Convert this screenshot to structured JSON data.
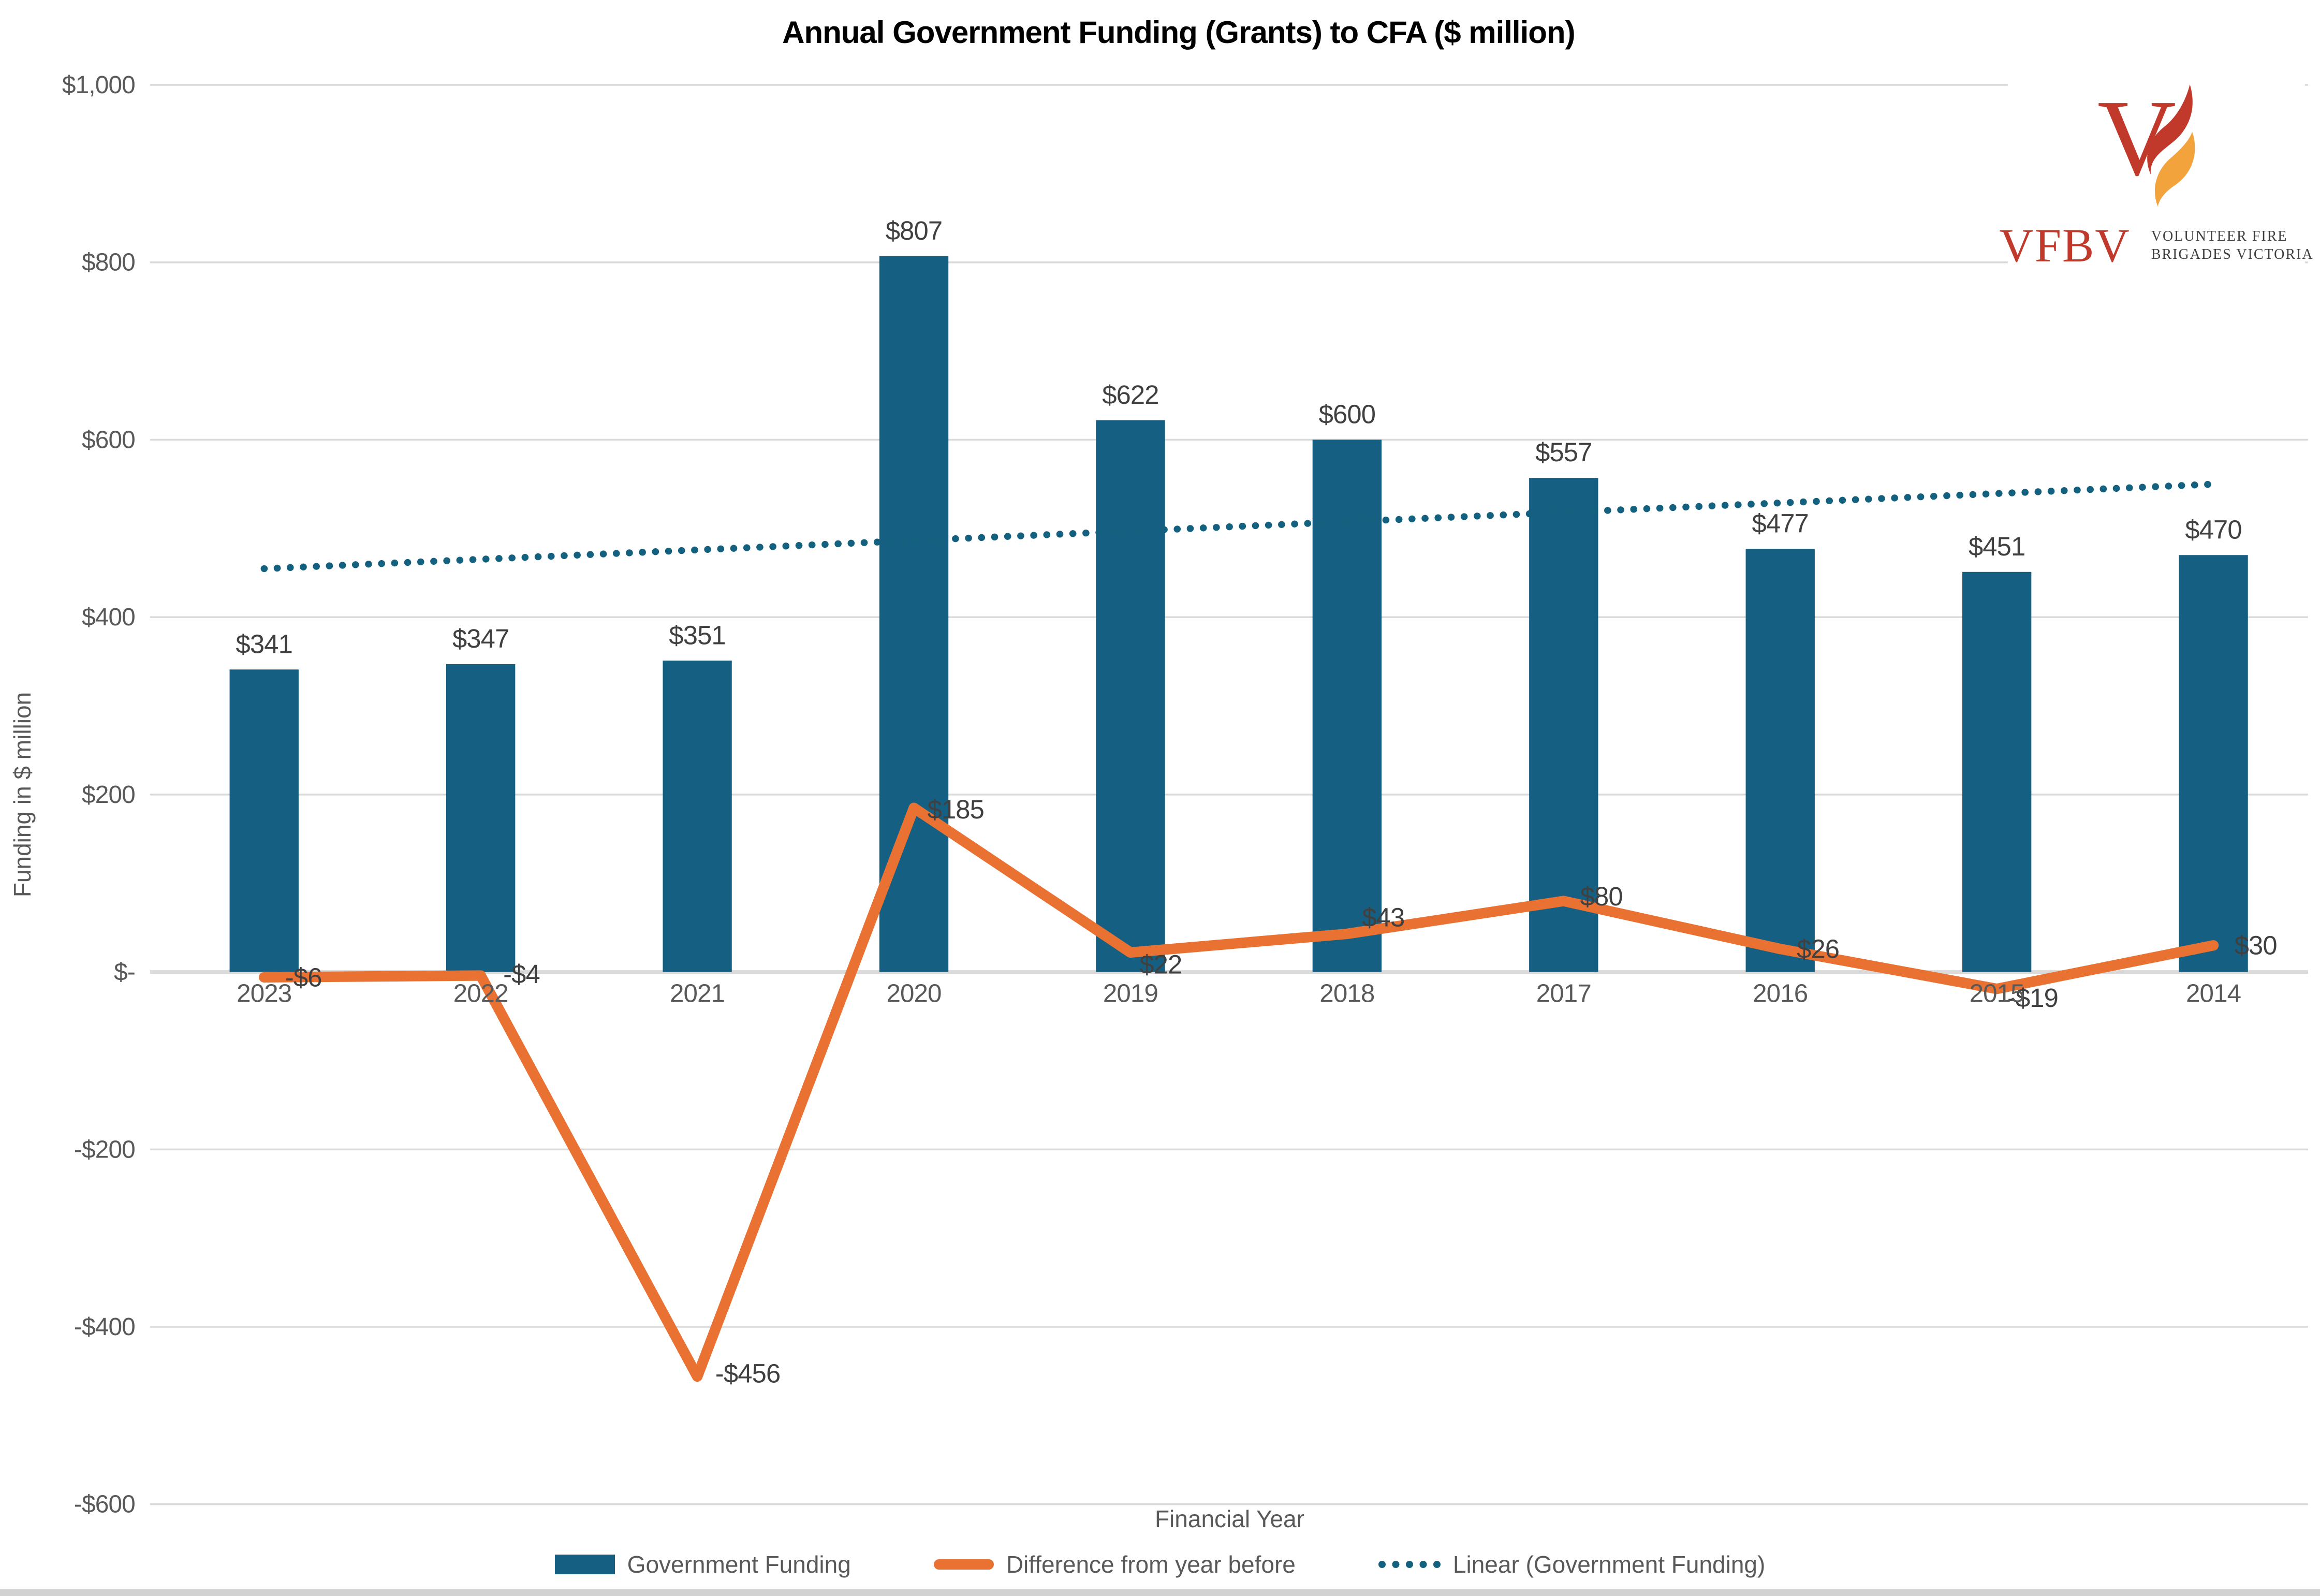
{
  "title": "Annual Government Funding (Grants) to CFA ($ million)",
  "logo": {
    "acronym": "VFBV",
    "org_line1": "VOLUNTEER FIRE",
    "org_line2": "BRIGADES VICTORIA"
  },
  "chart_data": {
    "type": "bar",
    "title": "Annual Government Funding (Grants) to CFA ($ million)",
    "categories": [
      "2023",
      "2022",
      "2021",
      "2020",
      "2019",
      "2018",
      "2017",
      "2016",
      "2015",
      "2014"
    ],
    "series": [
      {
        "name": "Government Funding",
        "type": "bar",
        "color": "#156082",
        "values": [
          341,
          347,
          351,
          807,
          622,
          600,
          557,
          477,
          451,
          470
        ],
        "labels": [
          "$341",
          "$347",
          "$351",
          "$807",
          "$622",
          "$600",
          "$557",
          "$477",
          "$451",
          "$470"
        ]
      },
      {
        "name": "Difference from year before",
        "type": "line",
        "color": "#E97132",
        "values": [
          -6,
          -4,
          -456,
          185,
          22,
          43,
          80,
          26,
          -19,
          30
        ],
        "labels": [
          "-$6",
          "-$4",
          "-$456",
          "$185",
          "$22",
          "$43",
          "$80",
          "$26",
          "-$19",
          "$30"
        ]
      },
      {
        "name": "Linear (Government Funding)",
        "type": "linear-trend",
        "of_series": "Government Funding",
        "color": "#14607F",
        "style": "dotted"
      }
    ],
    "xlabel": "Financial Year",
    "ylabel": "Funding in $ million",
    "ylim": [
      -600,
      1000
    ],
    "y_ticks": [
      {
        "label": "$1,000",
        "value": 1000
      },
      {
        "label": "$800",
        "value": 800
      },
      {
        "label": "$600",
        "value": 600
      },
      {
        "label": "$400",
        "value": 400
      },
      {
        "label": "$200",
        "value": 200
      },
      {
        "label": "$-",
        "value": 0
      },
      {
        "label": "-$200",
        "value": -200
      },
      {
        "label": "-$400",
        "value": -400
      },
      {
        "label": "-$600",
        "value": -600
      }
    ],
    "grid": "horizontal",
    "legend_position": "bottom"
  }
}
